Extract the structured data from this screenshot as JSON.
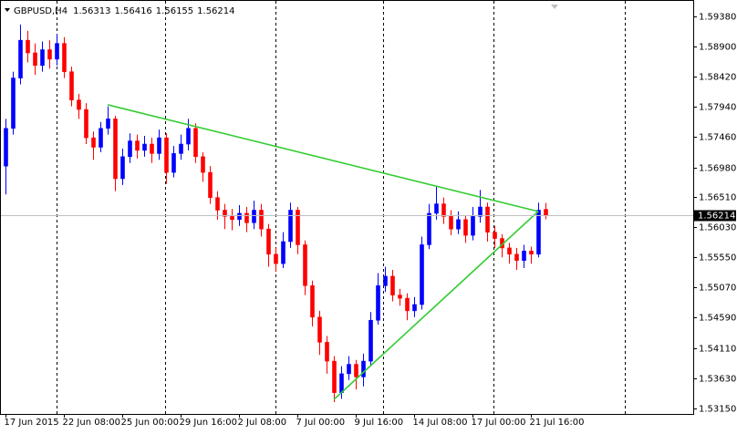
{
  "chart_data": {
    "type": "candlestick",
    "title": "GBPUSD,H4",
    "categories": [
      "17 Jun 2015",
      null,
      null,
      null,
      null,
      null,
      null,
      null,
      "22 Jun 08:00",
      null,
      null,
      null,
      null,
      null,
      null,
      null,
      "25 Jun 00:00",
      null,
      null,
      null,
      null,
      null,
      null,
      null,
      "29 Jun 16:00",
      null,
      null,
      null,
      null,
      null,
      null,
      null,
      "2 Jul 08:00",
      null,
      null,
      null,
      null,
      null,
      null,
      null,
      "7 Jul 00:00",
      null,
      null,
      null,
      null,
      null,
      null,
      null,
      "9 Jul 16:00",
      null,
      null,
      null,
      null,
      null,
      null,
      null,
      "14 Jul 08:00",
      null,
      null,
      null,
      null,
      null,
      null,
      null,
      "17 Jul 00:00",
      null,
      null,
      null,
      null,
      null,
      null,
      null,
      "21 Jul 16:00",
      null,
      null
    ],
    "open": [
      1.57,
      1.576,
      1.584,
      1.59,
      1.588,
      1.586,
      1.5885,
      1.587,
      1.5895,
      1.585,
      1.5805,
      1.579,
      1.5745,
      1.573,
      1.576,
      1.5775,
      1.568,
      1.5715,
      1.574,
      1.5725,
      1.5735,
      1.572,
      1.5745,
      1.569,
      1.572,
      1.5735,
      1.576,
      1.5715,
      1.569,
      1.565,
      1.563,
      1.562,
      1.5615,
      1.5625,
      1.561,
      1.563,
      1.56,
      1.556,
      1.5545,
      1.558,
      1.563,
      1.5575,
      1.551,
      1.546,
      1.542,
      1.539,
      1.534,
      1.537,
      1.5385,
      1.5365,
      1.539,
      1.5455,
      1.551,
      1.5525,
      1.5495,
      1.549,
      1.547,
      1.548,
      1.5575,
      1.5625,
      1.564,
      1.562,
      1.56,
      1.5615,
      1.559,
      1.562,
      1.5635,
      1.5595,
      1.5585,
      1.557,
      1.556,
      1.555,
      1.5565,
      1.556,
      1.56313
    ],
    "high": [
      1.5775,
      1.585,
      1.5925,
      1.5915,
      1.5895,
      1.5898,
      1.59,
      1.591,
      1.5905,
      1.5858,
      1.5815,
      1.58,
      1.5755,
      1.577,
      1.5795,
      1.578,
      1.5728,
      1.5752,
      1.575,
      1.5748,
      1.5745,
      1.5758,
      1.5752,
      1.5732,
      1.575,
      1.5775,
      1.5768,
      1.5722,
      1.57,
      1.566,
      1.564,
      1.5632,
      1.5638,
      1.5635,
      1.5645,
      1.564,
      1.5608,
      1.557,
      1.5595,
      1.5642,
      1.5635,
      1.5582,
      1.5518,
      1.547,
      1.543,
      1.5398,
      1.5382,
      1.5398,
      1.5392,
      1.5402,
      1.5468,
      1.553,
      1.554,
      1.5535,
      1.5505,
      1.5498,
      1.5492,
      1.5588,
      1.564,
      1.5668,
      1.565,
      1.563,
      1.5628,
      1.5622,
      1.5635,
      1.5662,
      1.5642,
      1.5605,
      1.5592,
      1.5578,
      1.557,
      1.5575,
      1.5572,
      1.5642,
      1.56416
    ],
    "low": [
      1.5655,
      1.575,
      1.583,
      1.5865,
      1.5845,
      1.585,
      1.5855,
      1.586,
      1.584,
      1.5795,
      1.5775,
      1.5735,
      1.571,
      1.5722,
      1.575,
      1.566,
      1.567,
      1.5705,
      1.5712,
      1.5715,
      1.5705,
      1.571,
      1.5672,
      1.5682,
      1.571,
      1.5725,
      1.5705,
      1.5675,
      1.564,
      1.5615,
      1.56,
      1.5598,
      1.5605,
      1.5595,
      1.56,
      1.5588,
      1.554,
      1.5532,
      1.5538,
      1.557,
      1.556,
      1.5495,
      1.5445,
      1.54,
      1.537,
      1.5325,
      1.533,
      1.536,
      1.5345,
      1.535,
      1.5382,
      1.5448,
      1.55,
      1.5485,
      1.5478,
      1.5455,
      1.546,
      1.5472,
      1.5568,
      1.5615,
      1.5608,
      1.559,
      1.5592,
      1.5578,
      1.5582,
      1.561,
      1.558,
      1.557,
      1.5555,
      1.5545,
      1.5535,
      1.5538,
      1.5545,
      1.5555,
      1.56155
    ],
    "close": [
      1.576,
      1.584,
      1.59,
      1.588,
      1.586,
      1.5885,
      1.587,
      1.5895,
      1.585,
      1.5805,
      1.579,
      1.5745,
      1.573,
      1.576,
      1.5775,
      1.568,
      1.5715,
      1.574,
      1.5725,
      1.5735,
      1.572,
      1.5745,
      1.569,
      1.572,
      1.5735,
      1.576,
      1.5715,
      1.569,
      1.565,
      1.563,
      1.562,
      1.5615,
      1.5625,
      1.561,
      1.563,
      1.56,
      1.556,
      1.5545,
      1.558,
      1.563,
      1.5575,
      1.551,
      1.546,
      1.542,
      1.539,
      1.534,
      1.537,
      1.5385,
      1.5365,
      1.539,
      1.5455,
      1.551,
      1.5525,
      1.5495,
      1.549,
      1.547,
      1.548,
      1.5575,
      1.5625,
      1.564,
      1.562,
      1.56,
      1.5615,
      1.559,
      1.562,
      1.5635,
      1.5595,
      1.5585,
      1.557,
      1.556,
      1.555,
      1.5565,
      1.556,
      1.563,
      1.56214
    ],
    "up_color": "#0000ff",
    "down_color": "#ff0000",
    "ylim": [
      1.5309,
      1.5964
    ],
    "yticks": [
      {
        "value": 1.5938,
        "label": "1.59380"
      },
      {
        "value": 1.589,
        "label": "1.58900"
      },
      {
        "value": 1.5842,
        "label": "1.58420"
      },
      {
        "value": 1.5794,
        "label": "1.57940"
      },
      {
        "value": 1.5746,
        "label": "1.57460"
      },
      {
        "value": 1.5698,
        "label": "1.56980"
      },
      {
        "value": 1.5651,
        "label": "1.56510"
      },
      {
        "value": 1.5603,
        "label": "1.56030"
      },
      {
        "value": 1.5555,
        "label": "1.55550"
      },
      {
        "value": 1.5507,
        "label": "1.55070"
      },
      {
        "value": 1.5459,
        "label": "1.54590"
      },
      {
        "value": 1.5411,
        "label": "1.54110"
      },
      {
        "value": 1.5363,
        "label": "1.53630"
      },
      {
        "value": 1.5315,
        "label": "1.53150"
      }
    ],
    "trendlines": [
      {
        "color": "#33cc33",
        "x": [
          14,
          73
        ],
        "y": [
          1.57975,
          1.5628
        ]
      },
      {
        "color": "#33cc33",
        "x": [
          45,
          73
        ],
        "y": [
          1.5329,
          1.5628
        ]
      }
    ]
  }
}
